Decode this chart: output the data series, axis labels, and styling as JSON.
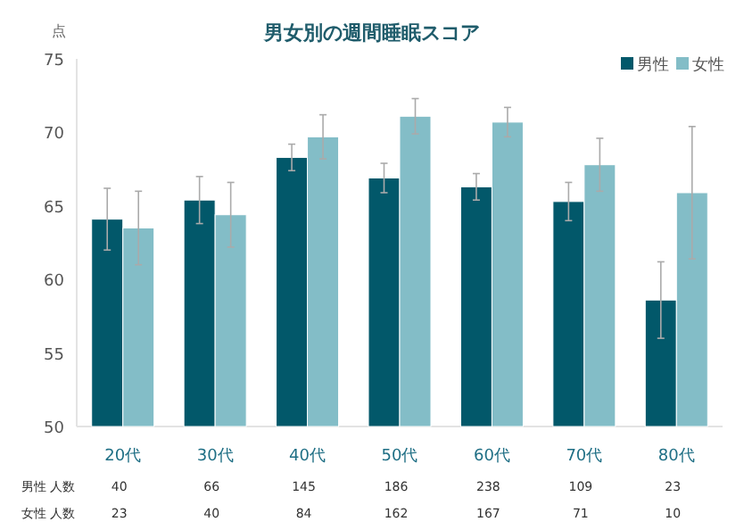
{
  "chart_data": {
    "type": "bar",
    "title": "男女別の週間睡眠スコア",
    "ylabel": "点",
    "categories": [
      "20代",
      "30代",
      "40代",
      "50代",
      "60代",
      "70代",
      "80代"
    ],
    "series": [
      {
        "name": "男性",
        "color": "#02586a",
        "values": [
          64.1,
          65.4,
          68.3,
          66.9,
          66.3,
          65.3,
          58.6
        ],
        "errors": [
          2.1,
          1.6,
          0.9,
          1.0,
          0.9,
          1.3,
          2.6
        ]
      },
      {
        "name": "女性",
        "color": "#83bdc7",
        "values": [
          63.5,
          64.4,
          69.7,
          71.1,
          70.7,
          67.8,
          65.9
        ],
        "errors": [
          2.5,
          2.2,
          1.5,
          1.2,
          1.0,
          1.8,
          4.5
        ]
      }
    ],
    "ylim": [
      50,
      75
    ],
    "yticks": [
      50,
      55,
      60,
      65,
      70,
      75
    ],
    "grid": false,
    "legend": "top right",
    "annotations": [
      "男性 人数",
      "40",
      "66",
      "145",
      "186",
      "238",
      "109",
      "23",
      "女性 人数",
      "23",
      "40",
      "84",
      "162",
      "167",
      "71",
      "10"
    ]
  }
}
